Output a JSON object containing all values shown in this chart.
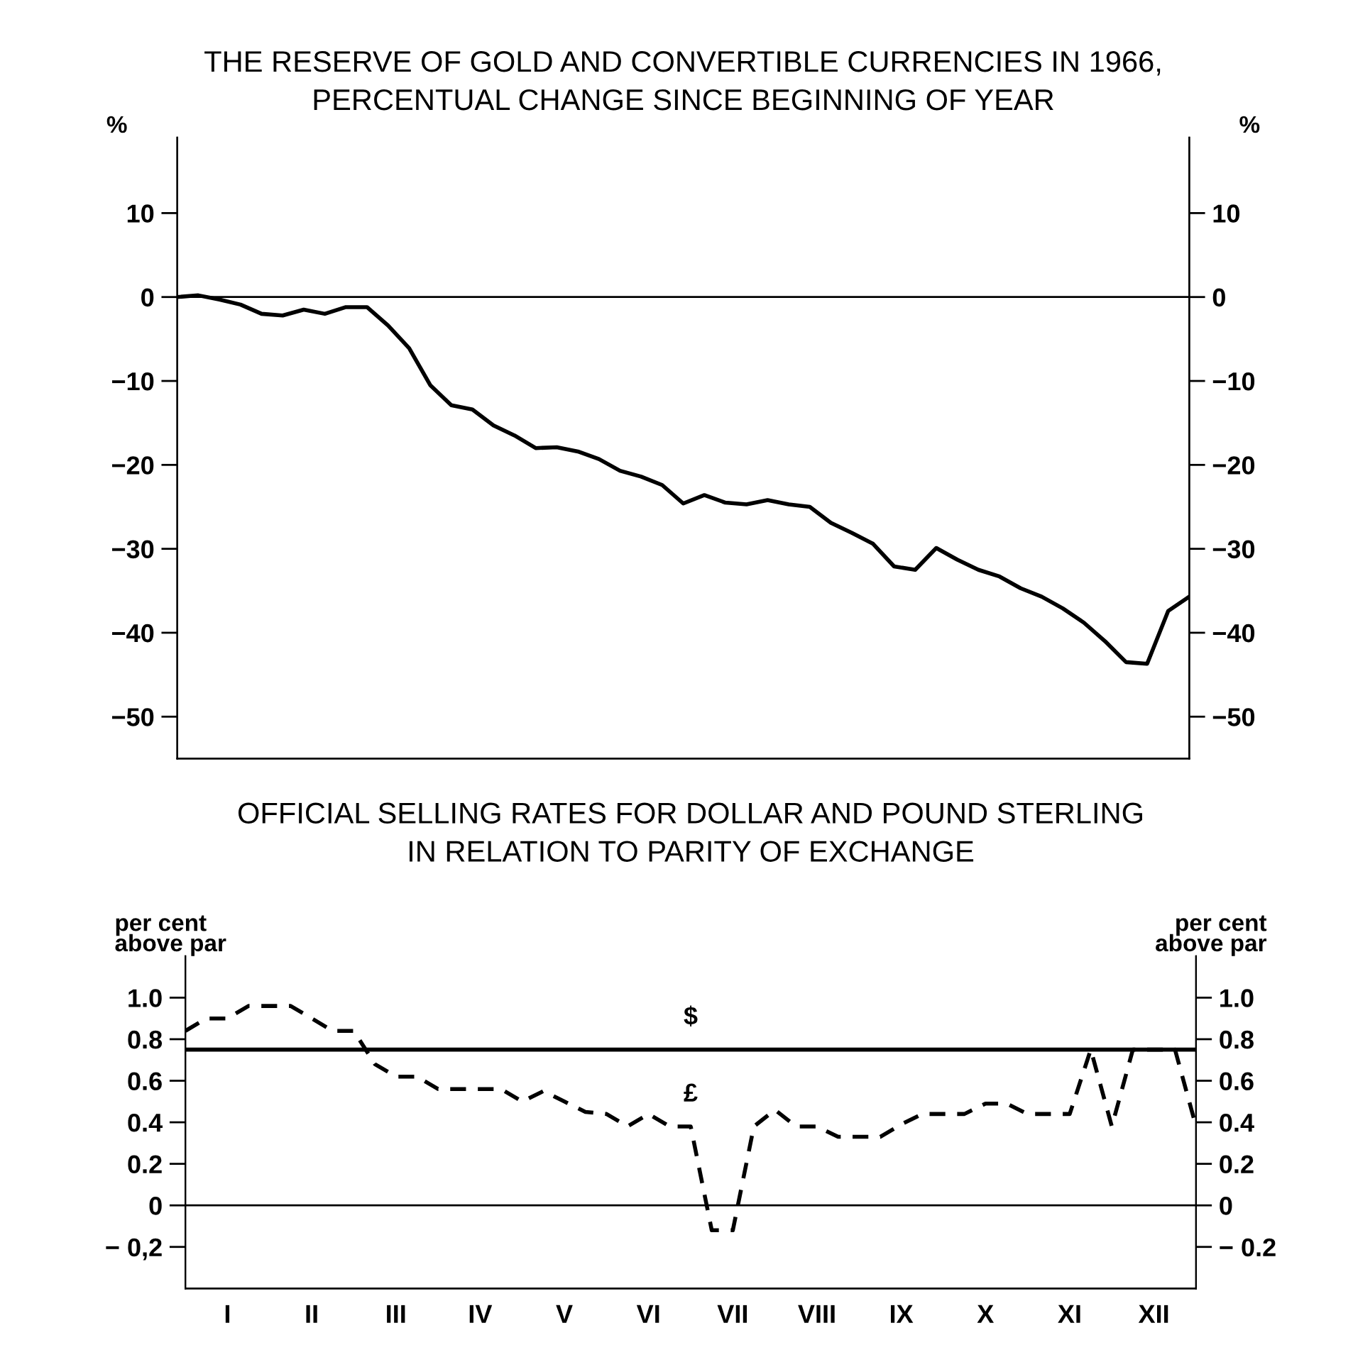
{
  "chart_data": [
    {
      "type": "line",
      "title": "THE RESERVE OF GOLD AND CONVERTIBLE CURRENCIES IN 1966,\nPERCENTUAL CHANGE SINCE BEGINNING OF YEAR",
      "ylabel": "%",
      "y2label": "%",
      "categories": [
        null,
        null,
        null,
        null,
        null,
        null,
        null,
        null,
        null,
        null,
        null,
        null,
        null,
        null,
        null,
        null,
        null,
        null,
        null,
        null,
        null,
        null,
        null,
        null,
        null,
        null,
        null,
        null,
        null,
        null,
        null,
        null,
        null,
        null,
        null,
        null,
        null,
        null,
        null,
        null,
        null,
        null,
        null,
        null,
        null,
        null,
        null,
        null,
        null
      ],
      "ylim": [
        -55,
        19
      ],
      "yticks": [
        10,
        0,
        {
          "value": -10,
          "label": "−10"
        },
        {
          "value": -20,
          "label": "−20"
        },
        {
          "value": -30,
          "label": "−30"
        },
        {
          "value": -40,
          "label": "−40"
        },
        {
          "value": -50,
          "label": "−50"
        }
      ],
      "y2lim": [
        -55,
        19
      ],
      "y2ticks": [
        10,
        0,
        {
          "value": -10,
          "label": "−10"
        },
        {
          "value": -20,
          "label": "−20"
        },
        {
          "value": -30,
          "label": "−30"
        },
        {
          "value": -40,
          "label": "−40"
        },
        {
          "value": -50,
          "label": "−50"
        }
      ],
      "grid": false,
      "legend": false,
      "marker": "none",
      "ref_lines": [
        {
          "axis": "y",
          "value": 0,
          "label": null,
          "color": "#000000"
        }
      ],
      "series": [
        {
          "color": "#000000",
          "line_style": "solid",
          "values": [
            0,
            0.2,
            -0.3,
            -0.9,
            -2.0,
            -2.2,
            -1.5,
            -2.0,
            -1.2,
            -1.2,
            -3.4,
            -6.1,
            -10.5,
            -12.9,
            -13.4,
            -15.3,
            -16.5,
            -18.0,
            -17.9,
            -18.4,
            -19.3,
            -20.7,
            -21.4,
            -22.4,
            -24.6,
            -23.6,
            -24.5,
            -24.7,
            -24.2,
            -24.7,
            -25.0,
            -26.9,
            -28.1,
            -29.4,
            -32.1,
            -32.5,
            -29.9,
            -31.3,
            -32.5,
            -33.3,
            -34.7,
            -35.7,
            -37.1,
            -38.8,
            -41.0,
            -43.5,
            -43.7,
            -37.4,
            -35.7
          ]
        }
      ]
    },
    {
      "type": "line",
      "title": "OFFICIAL SELLING RATES FOR DOLLAR AND POUND STERLING\nIN RELATION TO PARITY OF EXCHANGE",
      "ylabel": "per cent\nabove par",
      "y2label": "per cent\nabove par",
      "categories": [
        null,
        null,
        "I",
        null,
        null,
        null,
        "II",
        null,
        null,
        null,
        "III",
        null,
        null,
        null,
        "IV",
        null,
        null,
        null,
        "V",
        null,
        null,
        null,
        "VI",
        null,
        null,
        null,
        "VII",
        null,
        null,
        null,
        "VIII",
        null,
        null,
        null,
        "IX",
        null,
        null,
        null,
        "X",
        null,
        null,
        null,
        "XI",
        null,
        null,
        null,
        "XII",
        null,
        null
      ],
      "ylim": [
        -0.4,
        1.2
      ],
      "yticks": [
        {
          "value": 1.0,
          "label": "1.0"
        },
        0.8,
        0.6,
        0.4,
        0.2,
        0,
        {
          "value": -0.2,
          "label": "− 0,2"
        }
      ],
      "y2lim": [
        -0.4,
        1.2
      ],
      "y2ticks": [
        {
          "value": 1.0,
          "label": "1.0"
        },
        0.8,
        0.6,
        0.4,
        0.2,
        0,
        {
          "value": -0.2,
          "label": "− 0.2"
        }
      ],
      "grid": false,
      "legend": false,
      "marker": "none",
      "ref_lines": [
        {
          "axis": "y",
          "value": 0,
          "label": null,
          "color": "#000000"
        }
      ],
      "series": [
        {
          "name": "$",
          "color": "#000000",
          "line_style": "solid",
          "values": [
            0.75,
            0.75,
            0.75,
            0.75,
            0.75,
            0.75,
            0.75,
            0.75,
            0.75,
            0.75,
            0.75,
            0.75,
            0.75,
            0.75,
            0.75,
            0.75,
            0.75,
            0.75,
            0.75,
            0.75,
            0.75,
            0.75,
            0.75,
            0.75,
            0.75,
            0.75,
            0.75,
            0.75,
            0.75,
            0.75,
            0.75,
            0.75,
            0.75,
            0.75,
            0.75,
            0.75,
            0.75,
            0.75,
            0.75,
            0.75,
            0.75,
            0.75,
            0.75,
            0.75,
            0.75,
            0.75,
            0.75,
            0.75,
            0.75
          ]
        },
        {
          "name": "£",
          "color": "#000000",
          "line_style": "dashed",
          "values": [
            0.84,
            0.9,
            0.9,
            0.96,
            0.96,
            0.96,
            0.9,
            0.84,
            0.84,
            0.68,
            0.62,
            0.62,
            0.56,
            0.56,
            0.56,
            0.56,
            0.5,
            0.55,
            0.5,
            0.45,
            0.44,
            0.38,
            0.44,
            0.38,
            0.38,
            -0.12,
            -0.12,
            0.38,
            0.46,
            0.38,
            0.38,
            0.33,
            0.33,
            0.33,
            0.39,
            0.44,
            0.44,
            0.44,
            0.49,
            0.49,
            0.44,
            0.44,
            0.44,
            0.75,
            0.38,
            0.75,
            0.75,
            0.75,
            0.38
          ]
        }
      ]
    }
  ]
}
